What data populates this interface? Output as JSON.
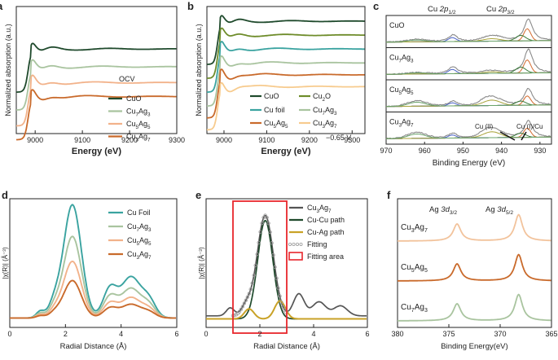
{
  "figure": {
    "description_labels": [
      "a",
      "b",
      "c",
      "d",
      "e",
      "f"
    ]
  },
  "colors": {
    "dark_green": "#1f4a2c",
    "sage_green": "#a9c49f",
    "peach": "#f2b28a",
    "brown_orange": "#c96a2b",
    "olive": "#6e8c2a",
    "teal": "#3aa3a0",
    "light_yellow_green": "#cfdc8f",
    "light_orange": "#f7cb8e",
    "grey_dark": "#555555",
    "mustard": "#c9a227",
    "red": "#e8262c",
    "fit_grey": "#9a9a9a"
  },
  "chart_data": [
    {
      "panel": "a",
      "type": "line",
      "xlabel": "Energy (eV)",
      "ylabel": "Normalized absorption (a.u.)",
      "xlim": [
        8960,
        9300
      ],
      "xticks": [
        "9000",
        "9100",
        "9200",
        "9300"
      ],
      "legend_title": "OCV",
      "series": [
        {
          "name": "CuO",
          "color": "#1f4a2c",
          "offset": 0.7
        },
        {
          "name": "Cu7Ag3",
          "color": "#a9c49f",
          "offset": 0.52
        },
        {
          "name": "Cu5Ag5",
          "color": "#f2b28a",
          "offset": 0.36
        },
        {
          "name": "Cu3Ag7",
          "color": "#c96a2b",
          "offset": 0.22
        }
      ]
    },
    {
      "panel": "b",
      "type": "line",
      "xlabel": "Energy (eV)",
      "ylabel": "Normalized absorption (a.u.)",
      "xlim": [
        8960,
        9330
      ],
      "xticks": [
        "9000",
        "9100",
        "9200",
        "9300"
      ],
      "annotation": "−0.65 V",
      "series": [
        {
          "name": "CuO",
          "color": "#1f4a2c",
          "offset": 0.98
        },
        {
          "name": "Cu2O",
          "color": "#6e8c2a",
          "offset": 0.84
        },
        {
          "name": "Cu foil",
          "color": "#3aa3a0",
          "offset": 0.7
        },
        {
          "name": "Cu7Ag3",
          "color": "#a9c49f",
          "offset": 0.56
        },
        {
          "name": "Cu5Ag5",
          "color": "#c96a2b",
          "offset": 0.44
        },
        {
          "name": "Cu3Ag7",
          "color": "#f7cb8e",
          "offset": 0.32
        }
      ]
    },
    {
      "panel": "c",
      "type": "line",
      "xlabel": "Binding Energy (eV)",
      "xlim": [
        970,
        927
      ],
      "xticks": [
        "970",
        "960",
        "950",
        "940",
        "930"
      ],
      "peak_labels": [
        "Cu 2p1/2",
        "Cu 2p3/2",
        "Cu (II)",
        "Cu (I)/Cu"
      ],
      "samples": [
        "CuO",
        "Cu7Ag3",
        "Cu5Ag5",
        "Cu3Ag7"
      ]
    },
    {
      "panel": "d",
      "type": "line",
      "xlabel": "Radial Distance (Å)",
      "ylabel": "|χ(R)| (Å⁻³)",
      "xlim": [
        0,
        6
      ],
      "xticks": [
        "0",
        "2",
        "4",
        "6"
      ],
      "series": [
        {
          "name": "Cu Foil",
          "color": "#3aa3a0",
          "peak_height": 1.0,
          "second_peak": 0.36
        },
        {
          "name": "Cu7Ag3",
          "color": "#a9c49f",
          "peak_height": 0.72,
          "second_peak": 0.26
        },
        {
          "name": "Cu5Ag5",
          "color": "#f2b28a",
          "peak_height": 0.5,
          "second_peak": 0.18
        },
        {
          "name": "Cu3Ag7",
          "color": "#c96a2b",
          "peak_height": 0.33,
          "second_peak": 0.12
        }
      ]
    },
    {
      "panel": "e",
      "type": "line",
      "xlabel": "Radial Distance (Å)",
      "ylabel": "|χ(R)| (Å⁻³)",
      "xlim": [
        0,
        6
      ],
      "xticks": [
        "0",
        "2",
        "4",
        "6"
      ],
      "fitting_range": [
        1.0,
        3.0
      ],
      "series": [
        {
          "name": "Cu3Ag7",
          "color": "#555555"
        },
        {
          "name": "Cu-Cu path",
          "color": "#1f4a2c"
        },
        {
          "name": "Cu-Ag path",
          "color": "#c9a227"
        },
        {
          "name": "Fitting",
          "color": "#9a9a9a"
        },
        {
          "name": "Fitting area",
          "color": "#e8262c"
        }
      ]
    },
    {
      "panel": "f",
      "type": "line",
      "xlabel": "Binding Energy(eV)",
      "xlim": [
        380,
        365
      ],
      "xticks": [
        "380",
        "375",
        "370",
        "365"
      ],
      "peak_positions": [
        374.2,
        368.2
      ],
      "peak_labels": [
        "Ag 3d3/2",
        "Ag 3d5/2"
      ],
      "series": [
        {
          "name": "Cu3Ag7",
          "color": "#f2c39c"
        },
        {
          "name": "Cu5Ag5",
          "color": "#c96a2b"
        },
        {
          "name": "Cu7Ag3",
          "color": "#a9c49f"
        }
      ]
    }
  ]
}
